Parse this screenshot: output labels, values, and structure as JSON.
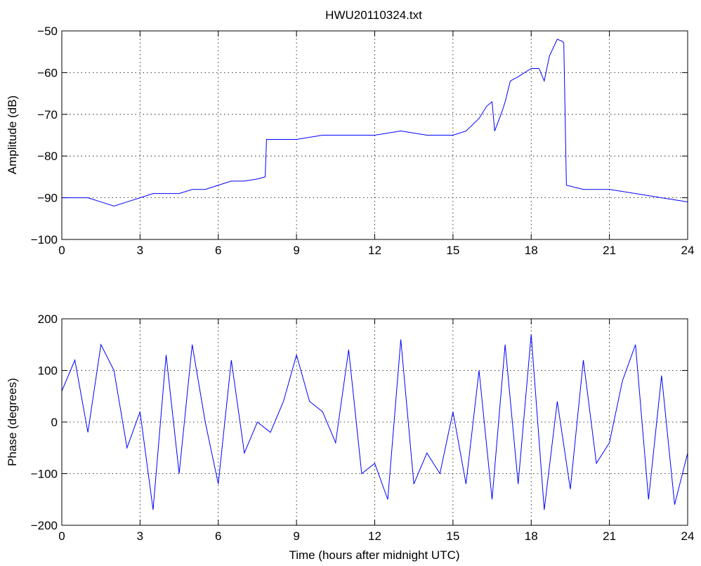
{
  "chart_data": [
    {
      "type": "line",
      "title": "HWU20110324.txt",
      "xlabel": "",
      "ylabel": "Amplitude (dB)",
      "xlim": [
        0,
        24
      ],
      "ylim": [
        -100,
        -50
      ],
      "x_ticks": [
        "0",
        "3",
        "6",
        "9",
        "12",
        "15",
        "18",
        "21",
        "24"
      ],
      "y_ticks": [
        "−100",
        "−90",
        "−80",
        "−70",
        "−60",
        "−50"
      ],
      "grid": true,
      "line_color": "#0000ff",
      "series": [
        {
          "x": [
            0,
            0.5,
            1.0,
            1.5,
            2.0,
            2.5,
            3.0,
            3.5,
            4.0,
            4.5,
            5.0,
            5.5,
            6.0,
            6.5,
            7.0,
            7.5,
            7.8,
            7.85,
            8.5,
            9.0,
            10.0,
            11.0,
            12.0,
            13.0,
            14.0,
            15.0,
            15.5,
            16.0,
            16.3,
            16.5,
            16.6,
            16.9,
            17.0,
            17.2,
            17.5,
            18.0,
            18.3,
            18.5,
            18.7,
            19.0,
            19.2,
            19.25,
            19.35,
            20.0,
            21.0,
            22.0,
            23.0,
            24.0
          ],
          "y": [
            -90,
            -90,
            -90,
            -91,
            -92,
            -91,
            -90,
            -89,
            -89,
            -89,
            -88,
            -88,
            -87,
            -86,
            -86,
            -85.5,
            -85,
            -76,
            -76,
            -76,
            -75,
            -75,
            -75,
            -74,
            -75,
            -75,
            -74,
            -71,
            -68,
            -67,
            -74,
            -69,
            -67,
            -62,
            -61,
            -59,
            -59,
            -62,
            -56,
            -52,
            -52.5,
            -53,
            -87,
            -88,
            -88,
            -89,
            -90,
            -91
          ]
        }
      ]
    },
    {
      "type": "line",
      "title": "",
      "xlabel": "Time (hours after midnight UTC)",
      "ylabel": "Phase (degrees)",
      "xlim": [
        0,
        24
      ],
      "ylim": [
        -200,
        200
      ],
      "x_ticks": [
        "0",
        "3",
        "6",
        "9",
        "12",
        "15",
        "18",
        "21",
        "24"
      ],
      "y_ticks": [
        "−200",
        "−100",
        "0",
        "100",
        "200"
      ],
      "grid": true,
      "line_color": "#0000ff",
      "series": [
        {
          "x": [
            0,
            0.5,
            1.0,
            1.5,
            2.0,
            2.5,
            3.0,
            3.5,
            4.0,
            4.5,
            5.0,
            5.5,
            6.0,
            6.5,
            7.0,
            7.5,
            8.0,
            8.5,
            9.0,
            9.5,
            10.0,
            10.5,
            11.0,
            11.5,
            12.0,
            12.5,
            13.0,
            13.5,
            14.0,
            14.5,
            15.0,
            15.5,
            16.0,
            16.5,
            17.0,
            17.5,
            18.0,
            18.5,
            19.0,
            19.5,
            20.0,
            20.5,
            21.0,
            21.5,
            22.0,
            22.5,
            23.0,
            23.5,
            24.0
          ],
          "y": [
            60,
            120,
            -20,
            150,
            100,
            -50,
            20,
            -170,
            130,
            -100,
            150,
            0,
            -120,
            120,
            -60,
            0,
            -20,
            40,
            130,
            40,
            20,
            -40,
            140,
            -100,
            -80,
            -150,
            160,
            -120,
            -60,
            -100,
            20,
            -120,
            100,
            -150,
            150,
            -120,
            170,
            -170,
            40,
            -130,
            120,
            -80,
            -40,
            80,
            150,
            -150,
            90,
            -160,
            -60
          ]
        }
      ]
    }
  ]
}
